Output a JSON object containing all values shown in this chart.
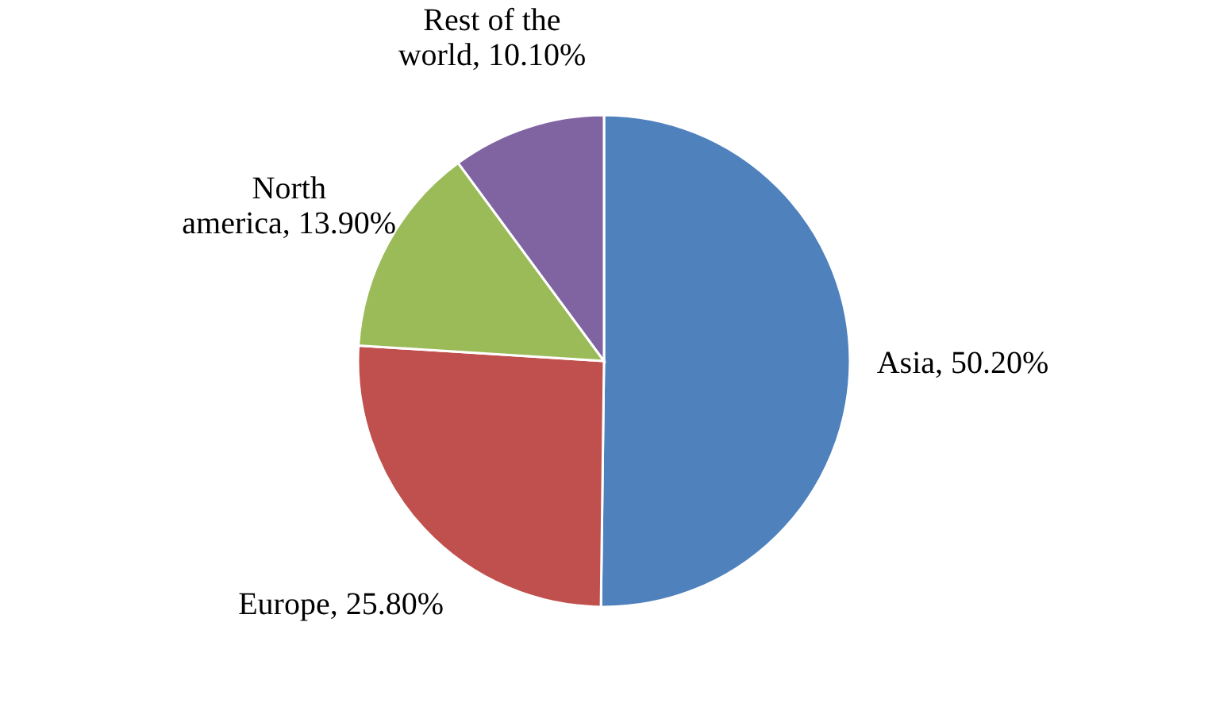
{
  "chart_data": {
    "type": "pie",
    "categories": [
      "Asia",
      "Europe",
      "North america",
      "Rest of the world"
    ],
    "values": [
      50.2,
      25.8,
      13.9,
      10.1
    ],
    "value_labels": [
      "50.20%",
      "25.80%",
      "13.90%",
      "10.10%"
    ],
    "colors": [
      "#4f81bd",
      "#c0504d",
      "#9bbb59",
      "#8064a2"
    ],
    "legend": false
  }
}
